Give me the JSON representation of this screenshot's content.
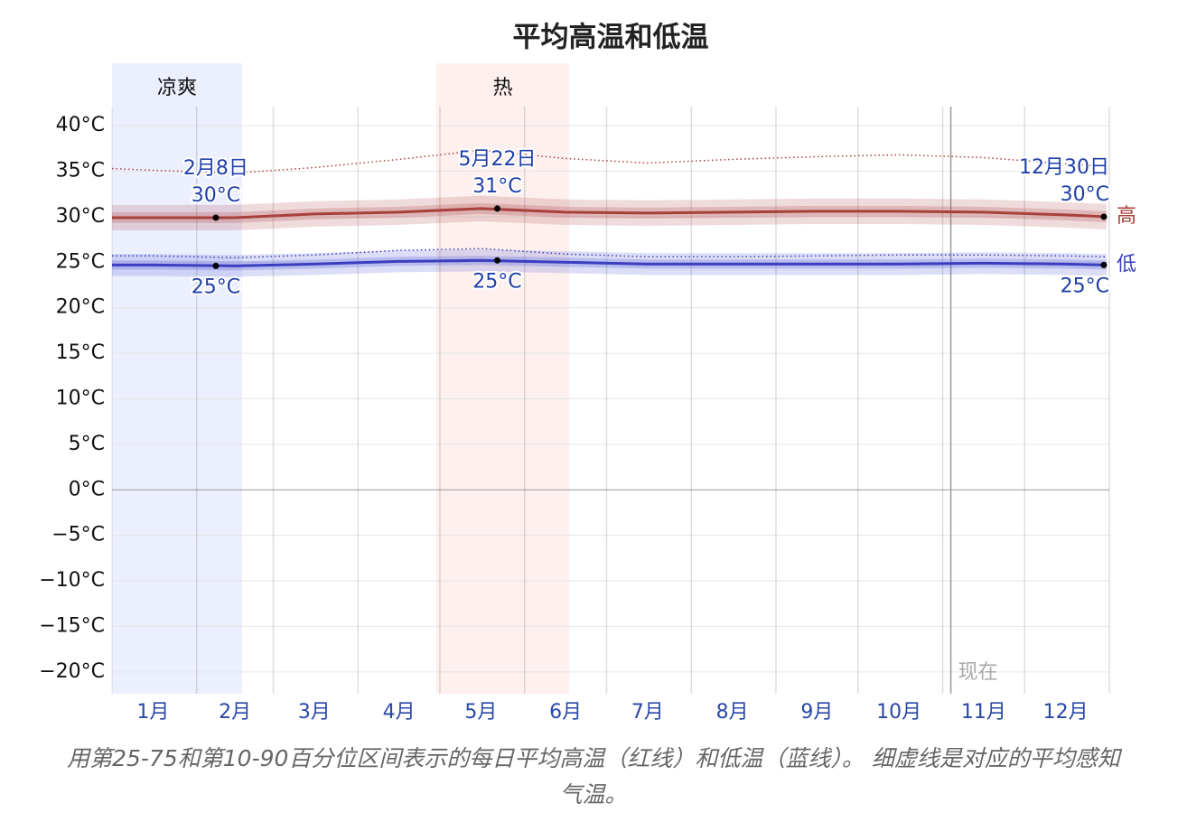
{
  "chart_data": {
    "type": "line",
    "title": "平均高温和低温",
    "caption": "用第25-75和第10-90百分位区间表示的每日平均高温（红线）和低温（蓝线）。 细虚线是对应的平均感知气温。",
    "xlim": [
      1,
      366
    ],
    "xticks": [
      {
        "value": 16,
        "label": "1月"
      },
      {
        "value": 46,
        "label": "2月"
      },
      {
        "value": 75,
        "label": "3月"
      },
      {
        "value": 106,
        "label": "4月"
      },
      {
        "value": 136,
        "label": "5月"
      },
      {
        "value": 167,
        "label": "6月"
      },
      {
        "value": 197,
        "label": "7月"
      },
      {
        "value": 228,
        "label": "8月"
      },
      {
        "value": 259,
        "label": "9月"
      },
      {
        "value": 289,
        "label": "10月"
      },
      {
        "value": 320,
        "label": "11月"
      },
      {
        "value": 350,
        "label": "12月"
      }
    ],
    "xgrid": [
      32,
      60,
      91,
      121,
      152,
      182,
      213,
      244,
      274,
      305,
      335,
      366
    ],
    "ylim": [
      -22.4,
      42.1
    ],
    "yticks": [
      {
        "value": 40,
        "label": "40°C"
      },
      {
        "value": 35,
        "label": "35°C"
      },
      {
        "value": 30,
        "label": "30°C"
      },
      {
        "value": 25,
        "label": "25°C"
      },
      {
        "value": 20,
        "label": "20°C"
      },
      {
        "value": 15,
        "label": "15°C"
      },
      {
        "value": 10,
        "label": "10°C"
      },
      {
        "value": 5,
        "label": "5°C"
      },
      {
        "value": 0,
        "label": "0°C"
      },
      {
        "value": -5,
        "label": "−5°C"
      },
      {
        "value": -10,
        "label": "−10°C"
      },
      {
        "value": -15,
        "label": "−15°C"
      },
      {
        "value": -20,
        "label": "−20°C"
      }
    ],
    "grid": true,
    "seasons": [
      {
        "label": "凉爽",
        "start": 1,
        "end": 48.6,
        "color": "#eceffd"
      },
      {
        "label": "热",
        "start": 119.7,
        "end": 168.3,
        "color": "#fdf0ee"
      }
    ],
    "now": {
      "label": "现在",
      "x": 308
    },
    "x": [
      1,
      16,
      46,
      75,
      106,
      136,
      167,
      197,
      228,
      259,
      289,
      320,
      350,
      365
    ],
    "series": [
      {
        "name": "高",
        "color": "#a8403c",
        "band_color": "#b04a50",
        "values": [
          29.9,
          29.9,
          29.9,
          30.3,
          30.5,
          30.9,
          30.5,
          30.4,
          30.5,
          30.6,
          30.6,
          30.5,
          30.2,
          30.0
        ],
        "p10": [
          28.5,
          28.5,
          28.5,
          28.9,
          29.1,
          29.5,
          29.1,
          29.0,
          29.1,
          29.2,
          29.2,
          29.1,
          28.8,
          28.6
        ],
        "p25": [
          29.3,
          29.3,
          29.3,
          29.7,
          29.9,
          30.3,
          29.9,
          29.8,
          29.9,
          30.0,
          30.0,
          29.9,
          29.6,
          29.4
        ],
        "p75": [
          30.5,
          30.5,
          30.5,
          30.9,
          31.1,
          31.5,
          31.1,
          31.0,
          31.1,
          31.2,
          31.2,
          31.1,
          30.8,
          30.6
        ],
        "p90": [
          31.3,
          31.3,
          31.3,
          31.7,
          31.9,
          32.3,
          31.9,
          31.8,
          31.9,
          32.0,
          32.0,
          31.9,
          31.6,
          31.4
        ],
        "feels_like": [
          35.3,
          35.1,
          34.8,
          35.4,
          36.3,
          37.3,
          36.4,
          35.9,
          36.3,
          36.6,
          36.8,
          36.5,
          35.8,
          35.5
        ]
      },
      {
        "name": "低",
        "color": "#3b3fbf",
        "band_color": "#5058d8",
        "values": [
          24.7,
          24.7,
          24.6,
          24.8,
          25.1,
          25.2,
          25.0,
          24.8,
          24.8,
          24.8,
          24.8,
          24.9,
          24.8,
          24.7
        ],
        "p10": [
          23.5,
          23.5,
          23.4,
          23.6,
          23.9,
          24.0,
          23.8,
          23.6,
          23.6,
          23.6,
          23.6,
          23.7,
          23.6,
          23.5
        ],
        "p25": [
          24.2,
          24.2,
          24.1,
          24.3,
          24.6,
          24.7,
          24.5,
          24.3,
          24.3,
          24.3,
          24.3,
          24.4,
          24.3,
          24.2
        ],
        "p75": [
          25.2,
          25.2,
          25.1,
          25.3,
          25.6,
          25.7,
          25.5,
          25.3,
          25.3,
          25.3,
          25.3,
          25.4,
          25.3,
          25.2
        ],
        "p90": [
          25.9,
          25.9,
          25.8,
          26.0,
          26.3,
          26.4,
          26.2,
          26.0,
          26.0,
          26.0,
          26.0,
          26.1,
          26.0,
          25.9
        ],
        "feels_like": [
          25.7,
          25.7,
          25.5,
          25.8,
          26.3,
          26.5,
          25.9,
          25.6,
          25.6,
          25.7,
          25.8,
          25.8,
          25.7,
          25.6
        ]
      }
    ],
    "annotations": [
      {
        "date": "2月8日",
        "x": 39,
        "high": 29.9,
        "high_label": "30°C",
        "low": 24.6,
        "low_label": "25°C"
      },
      {
        "date": "5月22日",
        "x": 142,
        "high": 30.9,
        "high_label": "31°C",
        "low": 25.2,
        "low_label": "25°C"
      },
      {
        "date": "12月30日",
        "x": 364,
        "high": 30.0,
        "high_label": "30°C",
        "low": 24.7,
        "low_label": "25°C"
      }
    ]
  }
}
